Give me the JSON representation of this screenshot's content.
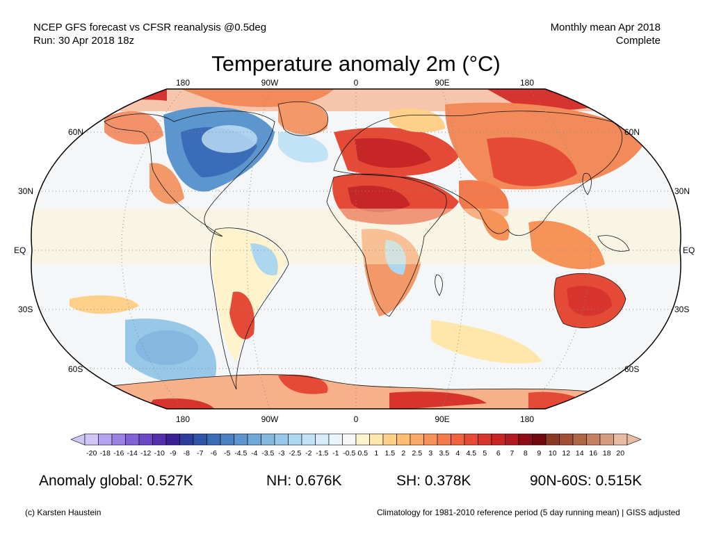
{
  "header": {
    "line1": "NCEP GFS forecast vs CFSR reanalysis @0.5deg",
    "line2": "Run: 30 Apr 2018 18z",
    "right1": "Monthly mean Apr 2018",
    "right2": "Complete"
  },
  "title": "Temperature anomaly 2m (°C)",
  "axes": {
    "lon_labels": [
      "180",
      "90W",
      "0",
      "90E",
      "180"
    ],
    "lat_labels": [
      "60N",
      "30N",
      "EQ",
      "30S",
      "60S"
    ]
  },
  "colorbar": {
    "labels": [
      "-20",
      "-18",
      "-16",
      "-14",
      "-12",
      "-10",
      "-9",
      "-8",
      "-7",
      "-6",
      "-5",
      "-4.5",
      "-4",
      "-3.5",
      "-3",
      "-2.5",
      "-2",
      "-1.5",
      "-1",
      "-0.5",
      "0.5",
      "1",
      "1.5",
      "2",
      "2.5",
      "3",
      "3.5",
      "4",
      "4.5",
      "5",
      "6",
      "7",
      "8",
      "9",
      "10",
      "12",
      "14",
      "16",
      "18",
      "20"
    ],
    "colors": [
      "#cfc6f5",
      "#b4a3ee",
      "#9b80e5",
      "#8262d8",
      "#6a48c8",
      "#5430b0",
      "#3a1f96",
      "#2c3c9a",
      "#2f55a8",
      "#3a6cb8",
      "#4a82c4",
      "#5d96cf",
      "#6fa8d8",
      "#84b8e0",
      "#98c8e8",
      "#add6ef",
      "#c2e2f5",
      "#d6ecfa",
      "#eaf4fc",
      "#f7f7f7",
      "#fff3cc",
      "#ffe6ab",
      "#ffd08a",
      "#ffbe74",
      "#fca866",
      "#f79258",
      "#f37a4c",
      "#ee6240",
      "#e44a36",
      "#d8342e",
      "#c72626",
      "#b11a1f",
      "#8e0d17",
      "#6e0a0e",
      "#8a3a24",
      "#a04e34",
      "#b26648",
      "#c48062",
      "#d69c80",
      "#e8bca3"
    ]
  },
  "stats": {
    "global": "Anomaly global: 0.527K",
    "nh": "NH: 0.676K",
    "sh": "SH: 0.378K",
    "polar": "90N-60S: 0.515K"
  },
  "footer": {
    "left": "(c) Karsten Haustein",
    "right": "Climatology for 1981-2010 reference period (5 day running mean) | GISS adjusted"
  }
}
